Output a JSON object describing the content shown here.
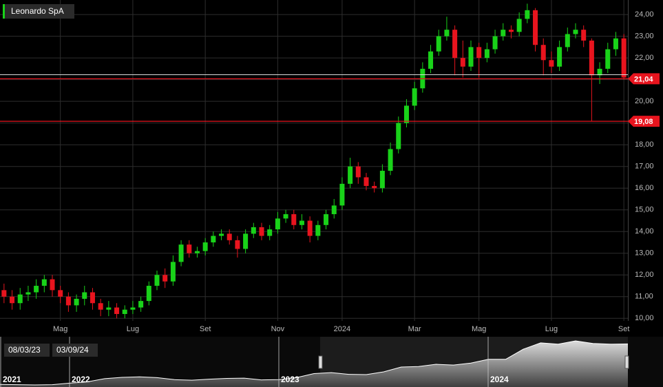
{
  "chart_data": {
    "type": "candlestick",
    "title": "Leonardo SpA",
    "categories": [
      null,
      null,
      null,
      null,
      null,
      null,
      null,
      "Mag",
      null,
      null,
      null,
      null,
      null,
      null,
      null,
      null,
      "Lug",
      null,
      null,
      null,
      null,
      null,
      null,
      null,
      null,
      "Set",
      null,
      null,
      null,
      null,
      null,
      null,
      null,
      null,
      "Nov",
      null,
      null,
      null,
      null,
      null,
      null,
      null,
      "2024",
      null,
      null,
      null,
      null,
      null,
      null,
      null,
      null,
      "Mar",
      null,
      null,
      null,
      null,
      null,
      null,
      null,
      "Mag",
      null,
      null,
      null,
      null,
      null,
      null,
      null,
      null,
      "Lug",
      null,
      null,
      null,
      null,
      null,
      null,
      null,
      null,
      "Set"
    ],
    "open": [
      11.3,
      11.0,
      10.7,
      11.1,
      11.2,
      11.5,
      11.8,
      11.3,
      11.0,
      10.6,
      10.9,
      11.2,
      10.7,
      10.4,
      10.5,
      10.2,
      10.4,
      10.5,
      10.8,
      11.5,
      12.0,
      11.7,
      12.6,
      13.4,
      13.0,
      13.1,
      13.5,
      13.8,
      13.9,
      13.6,
      13.2,
      13.9,
      14.2,
      13.8,
      14.1,
      14.6,
      14.8,
      14.3,
      14.5,
      13.8,
      14.3,
      14.8,
      15.2,
      16.2,
      17.0,
      16.5,
      16.1,
      16.0,
      16.8,
      17.8,
      19.0,
      19.8,
      20.6,
      21.5,
      22.3,
      23.0,
      23.3,
      22.0,
      21.6,
      22.5,
      22.0,
      22.4,
      23.0,
      23.3,
      23.2,
      23.8,
      24.2,
      22.6,
      21.9,
      21.6,
      22.5,
      23.1,
      23.3,
      22.8,
      21.2,
      21.5,
      22.4,
      22.9
    ],
    "high": [
      11.6,
      11.3,
      11.4,
      11.5,
      11.8,
      12.0,
      12.0,
      11.5,
      11.2,
      11.1,
      11.5,
      11.4,
      10.9,
      10.8,
      10.7,
      10.6,
      10.8,
      11.0,
      11.7,
      12.2,
      12.3,
      12.9,
      13.6,
      13.6,
      13.3,
      13.7,
      14.0,
      14.1,
      14.1,
      13.8,
      14.1,
      14.4,
      14.4,
      14.3,
      14.9,
      15.0,
      15.0,
      14.8,
      14.7,
      14.5,
      15.0,
      15.5,
      16.5,
      17.4,
      17.2,
      16.7,
      16.3,
      17.1,
      18.1,
      19.3,
      20.1,
      20.9,
      21.8,
      22.6,
      23.3,
      23.9,
      23.5,
      22.8,
      22.8,
      22.7,
      22.7,
      23.3,
      23.6,
      23.5,
      24.1,
      24.5,
      24.3,
      22.9,
      22.3,
      22.8,
      23.4,
      23.6,
      23.5,
      22.9,
      21.8,
      22.7,
      23.2,
      23.1
    ],
    "low": [
      10.7,
      10.4,
      10.4,
      10.8,
      10.9,
      11.2,
      11.0,
      10.7,
      10.3,
      10.3,
      10.6,
      10.4,
      10.1,
      10.1,
      10.0,
      10.0,
      10.2,
      10.3,
      10.6,
      11.3,
      11.4,
      11.5,
      12.4,
      12.8,
      12.8,
      12.9,
      13.3,
      13.6,
      13.4,
      12.8,
      13.0,
      13.7,
      13.6,
      13.6,
      13.9,
      14.4,
      14.1,
      14.1,
      13.5,
      13.6,
      14.1,
      14.6,
      15.0,
      16.0,
      16.2,
      15.9,
      15.8,
      15.8,
      16.6,
      17.6,
      18.8,
      19.6,
      20.4,
      21.3,
      22.1,
      22.8,
      21.2,
      21.1,
      21.4,
      21.1,
      21.8,
      22.2,
      22.8,
      22.9,
      23.0,
      23.6,
      22.3,
      21.2,
      21.3,
      21.4,
      22.3,
      22.9,
      22.5,
      19.1,
      20.8,
      21.3,
      22.1,
      21.0
    ],
    "close": [
      11.0,
      10.7,
      11.1,
      11.2,
      11.5,
      11.8,
      11.3,
      11.0,
      10.6,
      10.9,
      11.2,
      10.7,
      10.4,
      10.5,
      10.2,
      10.4,
      10.5,
      10.8,
      11.5,
      12.0,
      11.7,
      12.6,
      13.4,
      13.0,
      13.1,
      13.5,
      13.8,
      13.9,
      13.6,
      13.2,
      13.9,
      14.2,
      13.8,
      14.1,
      14.6,
      14.8,
      14.3,
      14.5,
      13.8,
      14.3,
      14.8,
      15.2,
      16.2,
      17.0,
      16.5,
      16.1,
      16.0,
      16.8,
      17.8,
      19.0,
      19.8,
      20.6,
      21.5,
      22.3,
      23.0,
      23.3,
      22.0,
      21.6,
      22.5,
      22.0,
      22.4,
      23.0,
      23.3,
      23.2,
      23.8,
      24.2,
      22.6,
      21.9,
      21.6,
      22.5,
      23.1,
      23.3,
      22.8,
      21.2,
      21.5,
      22.4,
      22.9,
      21.1
    ],
    "up_color": "#19d219",
    "down_color": "#e8141e",
    "ylim": [
      9.8,
      24.6
    ],
    "yticks": [
      {
        "value": 10,
        "label": "10,00"
      },
      {
        "value": 11,
        "label": "11,00"
      },
      {
        "value": 12,
        "label": "12,00"
      },
      {
        "value": 13,
        "label": "13,00"
      },
      {
        "value": 14,
        "label": "14,00"
      },
      {
        "value": 15,
        "label": "15,00"
      },
      {
        "value": 16,
        "label": "16,00"
      },
      {
        "value": 17,
        "label": "17,00"
      },
      {
        "value": 18,
        "label": "18,00"
      },
      {
        "value": 19,
        "label": "19,00"
      },
      {
        "value": 20,
        "label": "20,00"
      },
      {
        "value": 21,
        "label": "21,00"
      },
      {
        "value": 22,
        "label": "22,00"
      },
      {
        "value": 23,
        "label": "23,00"
      },
      {
        "value": 24,
        "label": "24,00"
      }
    ],
    "grid": true,
    "levels": [
      {
        "value": 21.04,
        "label": "21,04"
      },
      {
        "value": 19.08,
        "label": "19,08"
      }
    ],
    "navigator": {
      "labels": [
        "2021",
        "2022",
        "2023",
        "2024"
      ],
      "range": [
        "08/03/23",
        "03/09/24"
      ],
      "values": [
        6.5,
        6.4,
        6.3,
        6.4,
        7.0,
        7.5,
        8.8,
        9.3,
        9.5,
        9.2,
        8.4,
        8.2,
        8.6,
        8.9,
        9.0,
        8.3,
        8.4,
        9.2,
        10.8,
        11.2,
        10.5,
        10.4,
        11.5,
        13.4,
        13.6,
        14.5,
        14.2,
        15.0,
        16.5,
        16.5,
        20.5,
        23.0,
        22.5,
        23.8,
        22.8,
        22.5,
        22.6
      ]
    }
  }
}
